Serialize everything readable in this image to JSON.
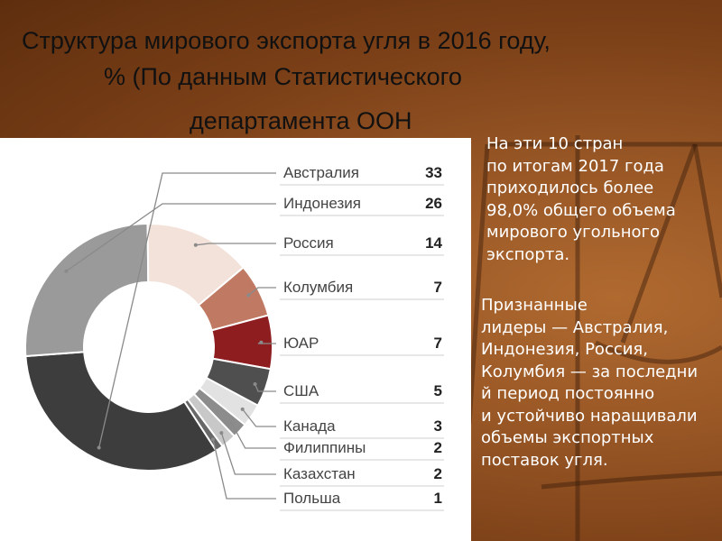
{
  "title": {
    "line1": "Структура мирового экспорта угля в 2016 году,",
    "line2": "% (По данным Статистического",
    "line3": "департамента ООН"
  },
  "notes": {
    "note1": [
      "На эти 10 стран",
      "по итогам 2017 года",
      "приходилось более",
      "98,0% общего объема",
      "мирового угольного",
      "экспорта."
    ],
    "note2": [
      "Признанные",
      "лидеры  — Австралия,",
      "Индонезия, Россия,",
      "Колумбия — за последни",
      "й период постоянно",
      "и устойчиво наращивали",
      "объемы экспортных",
      "поставок угля."
    ]
  },
  "colors": {
    "background": "#7a3f17",
    "panel": "#ffffff",
    "leader_line": "#8a8a8a",
    "label_text": "#444444",
    "value_text": "#222222"
  },
  "chart_data": {
    "type": "donut",
    "title": "",
    "categories": [
      "Австралия",
      "Индонезия",
      "Россия",
      "Колумбия",
      "ЮАР",
      "США",
      "Канада",
      "Филиппины",
      "Казахстан",
      "Польша"
    ],
    "values": [
      33,
      26,
      14,
      7,
      7,
      5,
      3,
      2,
      2,
      1
    ],
    "colors": [
      "#3d3d3d",
      "#9a9a9a",
      "#f2e2da",
      "#c07a63",
      "#8e1d20",
      "#4f4f4f",
      "#e2e2e2",
      "#8c8c8c",
      "#c8c8c8",
      "#686868"
    ],
    "legend": "right-list-with-values"
  }
}
